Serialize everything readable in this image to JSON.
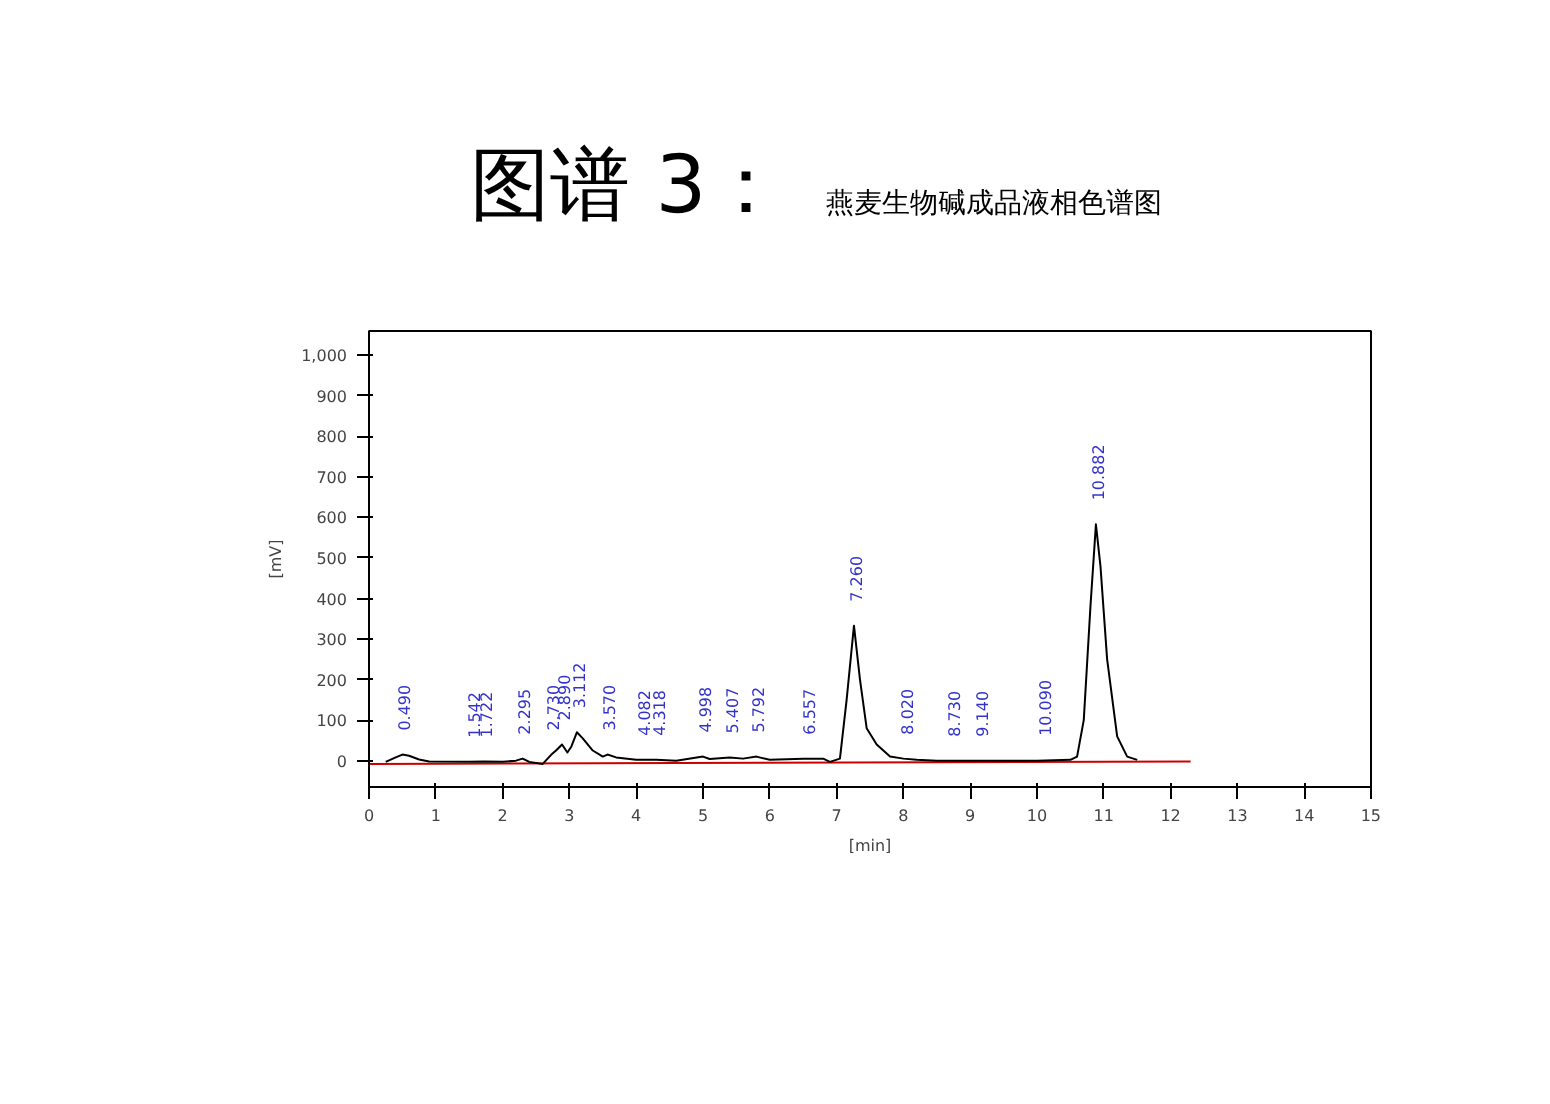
{
  "chart_data": {
    "type": "line",
    "title": "图谱 3：",
    "subtitle": "燕麦生物碱成品液相色谱图",
    "xlabel": "[min]",
    "ylabel": "[mV]",
    "xlim": [
      0,
      15
    ],
    "ylim": [
      -65,
      1060
    ],
    "xticks": [
      0,
      1,
      2,
      3,
      4,
      5,
      6,
      7,
      8,
      9,
      10,
      11,
      12,
      13,
      14,
      15
    ],
    "yticks": [
      0,
      100,
      200,
      300,
      400,
      500,
      600,
      700,
      800,
      900,
      {
        "value": 1000,
        "label": "1,000"
      }
    ],
    "grid": false,
    "marker": "none",
    "line_style": "solid",
    "series": [
      {
        "color": "#cc0000",
        "x": [
          0,
          12.3
        ],
        "values": [
          -8,
          -2
        ]
      },
      {
        "color": "#000000",
        "x": [
          0.25,
          0.4,
          0.5,
          0.6,
          0.75,
          0.9,
          1.5,
          1.72,
          2.0,
          2.2,
          2.3,
          2.4,
          2.6,
          2.73,
          2.8,
          2.89,
          2.97,
          3.03,
          3.112,
          3.2,
          3.35,
          3.5,
          3.57,
          3.7,
          4.0,
          4.3,
          4.6,
          5.0,
          5.1,
          5.4,
          5.6,
          5.8,
          6.0,
          6.5,
          6.8,
          6.9,
          7.05,
          7.15,
          7.26,
          7.35,
          7.45,
          7.6,
          7.8,
          8.0,
          8.2,
          8.5,
          9.0,
          10.0,
          10.5,
          10.6,
          10.7,
          10.8,
          10.882,
          10.95,
          11.05,
          11.2,
          11.35,
          11.5
        ],
        "values": [
          -3,
          8,
          15,
          12,
          3,
          -2,
          -3,
          -2,
          -3,
          0,
          5,
          -3,
          -8,
          15,
          25,
          40,
          20,
          35,
          70,
          55,
          25,
          10,
          15,
          8,
          2,
          2,
          0,
          10,
          4,
          8,
          5,
          10,
          2,
          5,
          5,
          -3,
          5,
          150,
          333,
          200,
          80,
          40,
          10,
          5,
          2,
          0,
          0,
          0,
          2,
          10,
          100,
          380,
          583,
          480,
          250,
          60,
          10,
          2
        ]
      }
    ],
    "annotations": [
      {
        "text": "0.490",
        "x": 0.49,
        "y": 15
      },
      {
        "text": "1.542",
        "x": 1.542,
        "y": -3
      },
      {
        "text": "1.722",
        "x": 1.722,
        "y": -2
      },
      {
        "text": "2.295",
        "x": 2.295,
        "y": 5
      },
      {
        "text": "2.730",
        "x": 2.73,
        "y": 15
      },
      {
        "text": "2.890",
        "x": 2.89,
        "y": 40
      },
      {
        "text": "3.112",
        "x": 3.112,
        "y": 70
      },
      {
        "text": "3.570",
        "x": 3.57,
        "y": 15
      },
      {
        "text": "4.082",
        "x": 4.082,
        "y": 2
      },
      {
        "text": "4.318",
        "x": 4.318,
        "y": 2
      },
      {
        "text": "4.998",
        "x": 4.998,
        "y": 10
      },
      {
        "text": "5.407",
        "x": 5.407,
        "y": 8
      },
      {
        "text": "5.792",
        "x": 5.792,
        "y": 10
      },
      {
        "text": "6.557",
        "x": 6.557,
        "y": 5
      },
      {
        "text": "7.260",
        "x": 7.26,
        "y": 333
      },
      {
        "text": "8.020",
        "x": 8.02,
        "y": 5
      },
      {
        "text": "8.730",
        "x": 8.73,
        "y": 0
      },
      {
        "text": "9.140",
        "x": 9.14,
        "y": 0
      },
      {
        "text": "10.090",
        "x": 10.09,
        "y": 2
      },
      {
        "text": "10.882",
        "x": 10.882,
        "y": 583
      }
    ]
  }
}
